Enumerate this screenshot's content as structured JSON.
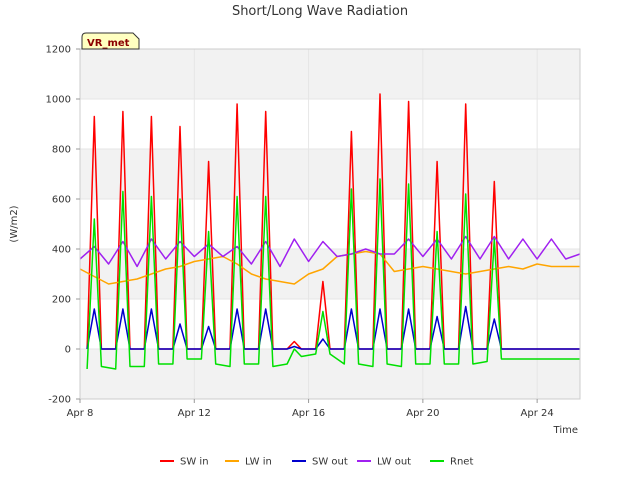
{
  "chart_data": {
    "type": "line",
    "title": "Short/Long Wave Radiation",
    "xlabel": "Time",
    "ylabel": "(W/m2)",
    "badge": "VR_met",
    "ylim": [
      -200,
      1200
    ],
    "yticks": [
      -200,
      0,
      200,
      400,
      600,
      800,
      1000,
      1200
    ],
    "xlim": [
      "2024-04-08",
      "2024-04-25 12:00"
    ],
    "xticks": [
      {
        "label": "Apr 8",
        "date": "2024-04-08"
      },
      {
        "label": "Apr 12",
        "date": "2024-04-12"
      },
      {
        "label": "Apr 16",
        "date": "2024-04-16"
      },
      {
        "label": "Apr 20",
        "date": "2024-04-20"
      },
      {
        "label": "Apr 24",
        "date": "2024-04-24"
      }
    ],
    "band_colors": [
      "#f2f2f2",
      "#ffffff"
    ],
    "legend_position": "bottom",
    "series": [
      {
        "name": "SW in",
        "color": "#ff0000",
        "x": [
          "2024-04-08 06:00",
          "2024-04-08 12:00",
          "2024-04-08 18:00",
          "2024-04-09 06:00",
          "2024-04-09 12:00",
          "2024-04-09 18:00",
          "2024-04-10 06:00",
          "2024-04-10 12:00",
          "2024-04-10 18:00",
          "2024-04-11 06:00",
          "2024-04-11 12:00",
          "2024-04-11 18:00",
          "2024-04-12 06:00",
          "2024-04-12 12:00",
          "2024-04-12 18:00",
          "2024-04-13 06:00",
          "2024-04-13 12:00",
          "2024-04-13 18:00",
          "2024-04-14 06:00",
          "2024-04-14 12:00",
          "2024-04-14 18:00",
          "2024-04-15 06:00",
          "2024-04-15 12:00",
          "2024-04-15 18:00",
          "2024-04-16 06:00",
          "2024-04-16 12:00",
          "2024-04-16 18:00",
          "2024-04-17 06:00",
          "2024-04-17 12:00",
          "2024-04-17 18:00",
          "2024-04-18 06:00",
          "2024-04-18 12:00",
          "2024-04-18 18:00",
          "2024-04-19 06:00",
          "2024-04-19 12:00",
          "2024-04-19 18:00",
          "2024-04-20 06:00",
          "2024-04-20 12:00",
          "2024-04-20 18:00",
          "2024-04-21 06:00",
          "2024-04-21 12:00",
          "2024-04-21 18:00",
          "2024-04-22 06:00",
          "2024-04-22 12:00",
          "2024-04-22 18:00",
          "2024-04-23 06:00",
          "2024-04-23 12:00",
          "2024-04-23 18:00",
          "2024-04-24 06:00",
          "2024-04-24 12:00",
          "2024-04-24 18:00",
          "2024-04-25 06:00",
          "2024-04-25 12:00"
        ],
        "values": [
          0,
          930,
          0,
          0,
          950,
          0,
          0,
          930,
          0,
          0,
          890,
          0,
          0,
          750,
          0,
          0,
          980,
          0,
          0,
          950,
          0,
          0,
          30,
          0,
          0,
          270,
          0,
          0,
          870,
          0,
          0,
          1020,
          0,
          0,
          990,
          0,
          0,
          750,
          0,
          0,
          980,
          0,
          0,
          670,
          0,
          0,
          0,
          0,
          0,
          0,
          0,
          0,
          0
        ]
      },
      {
        "name": "LW in",
        "color": "#ffa500",
        "x": [
          "2024-04-08",
          "2024-04-08 12:00",
          "2024-04-09",
          "2024-04-09 12:00",
          "2024-04-10",
          "2024-04-10 12:00",
          "2024-04-11",
          "2024-04-11 12:00",
          "2024-04-12",
          "2024-04-12 12:00",
          "2024-04-13",
          "2024-04-13 12:00",
          "2024-04-14",
          "2024-04-14 12:00",
          "2024-04-15",
          "2024-04-15 12:00",
          "2024-04-16",
          "2024-04-16 12:00",
          "2024-04-17",
          "2024-04-17 12:00",
          "2024-04-18",
          "2024-04-18 12:00",
          "2024-04-19",
          "2024-04-19 12:00",
          "2024-04-20",
          "2024-04-20 12:00",
          "2024-04-21",
          "2024-04-21 12:00",
          "2024-04-22",
          "2024-04-22 12:00",
          "2024-04-23",
          "2024-04-23 12:00",
          "2024-04-24",
          "2024-04-24 12:00",
          "2024-04-25",
          "2024-04-25 12:00"
        ],
        "values": [
          320,
          290,
          260,
          270,
          280,
          300,
          320,
          330,
          350,
          360,
          370,
          340,
          300,
          280,
          270,
          260,
          300,
          320,
          370,
          380,
          390,
          380,
          310,
          320,
          330,
          320,
          310,
          300,
          310,
          320,
          330,
          320,
          340,
          330,
          330,
          330
        ]
      },
      {
        "name": "SW out",
        "color": "#0000cd",
        "x": [
          "2024-04-08 06:00",
          "2024-04-08 12:00",
          "2024-04-08 18:00",
          "2024-04-09 06:00",
          "2024-04-09 12:00",
          "2024-04-09 18:00",
          "2024-04-10 06:00",
          "2024-04-10 12:00",
          "2024-04-10 18:00",
          "2024-04-11 06:00",
          "2024-04-11 12:00",
          "2024-04-11 18:00",
          "2024-04-12 06:00",
          "2024-04-12 12:00",
          "2024-04-12 18:00",
          "2024-04-13 06:00",
          "2024-04-13 12:00",
          "2024-04-13 18:00",
          "2024-04-14 06:00",
          "2024-04-14 12:00",
          "2024-04-14 18:00",
          "2024-04-15 06:00",
          "2024-04-15 12:00",
          "2024-04-15 18:00",
          "2024-04-16 06:00",
          "2024-04-16 12:00",
          "2024-04-16 18:00",
          "2024-04-17 06:00",
          "2024-04-17 12:00",
          "2024-04-17 18:00",
          "2024-04-18 06:00",
          "2024-04-18 12:00",
          "2024-04-18 18:00",
          "2024-04-19 06:00",
          "2024-04-19 12:00",
          "2024-04-19 18:00",
          "2024-04-20 06:00",
          "2024-04-20 12:00",
          "2024-04-20 18:00",
          "2024-04-21 06:00",
          "2024-04-21 12:00",
          "2024-04-21 18:00",
          "2024-04-22 06:00",
          "2024-04-22 12:00",
          "2024-04-22 18:00",
          "2024-04-23 06:00",
          "2024-04-23 12:00",
          "2024-04-23 18:00",
          "2024-04-24 06:00",
          "2024-04-24 12:00",
          "2024-04-24 18:00",
          "2024-04-25 06:00",
          "2024-04-25 12:00"
        ],
        "values": [
          0,
          160,
          0,
          0,
          160,
          0,
          0,
          160,
          0,
          0,
          100,
          0,
          0,
          90,
          0,
          0,
          160,
          0,
          0,
          160,
          0,
          0,
          10,
          0,
          0,
          40,
          0,
          0,
          160,
          0,
          0,
          160,
          0,
          0,
          160,
          0,
          0,
          130,
          0,
          0,
          170,
          0,
          0,
          120,
          0,
          0,
          0,
          0,
          0,
          0,
          0,
          0,
          0
        ]
      },
      {
        "name": "LW out",
        "color": "#a020f0",
        "x": [
          "2024-04-08",
          "2024-04-08 12:00",
          "2024-04-09",
          "2024-04-09 12:00",
          "2024-04-10",
          "2024-04-10 12:00",
          "2024-04-11",
          "2024-04-11 12:00",
          "2024-04-12",
          "2024-04-12 12:00",
          "2024-04-13",
          "2024-04-13 12:00",
          "2024-04-14",
          "2024-04-14 12:00",
          "2024-04-15",
          "2024-04-15 12:00",
          "2024-04-16",
          "2024-04-16 12:00",
          "2024-04-17",
          "2024-04-17 12:00",
          "2024-04-18",
          "2024-04-18 12:00",
          "2024-04-19",
          "2024-04-19 12:00",
          "2024-04-20",
          "2024-04-20 12:00",
          "2024-04-21",
          "2024-04-21 12:00",
          "2024-04-22",
          "2024-04-22 12:00",
          "2024-04-23",
          "2024-04-23 12:00",
          "2024-04-24",
          "2024-04-24 12:00",
          "2024-04-25",
          "2024-04-25 12:00"
        ],
        "values": [
          360,
          410,
          340,
          430,
          330,
          440,
          360,
          430,
          370,
          420,
          370,
          410,
          340,
          430,
          330,
          440,
          350,
          430,
          370,
          380,
          400,
          380,
          380,
          440,
          370,
          440,
          360,
          450,
          360,
          450,
          360,
          440,
          360,
          440,
          360,
          380
        ]
      },
      {
        "name": "Rnet",
        "color": "#00e000",
        "x": [
          "2024-04-08 06:00",
          "2024-04-08 12:00",
          "2024-04-08 18:00",
          "2024-04-09 06:00",
          "2024-04-09 12:00",
          "2024-04-09 18:00",
          "2024-04-10 06:00",
          "2024-04-10 12:00",
          "2024-04-10 18:00",
          "2024-04-11 06:00",
          "2024-04-11 12:00",
          "2024-04-11 18:00",
          "2024-04-12 06:00",
          "2024-04-12 12:00",
          "2024-04-12 18:00",
          "2024-04-13 06:00",
          "2024-04-13 12:00",
          "2024-04-13 18:00",
          "2024-04-14 06:00",
          "2024-04-14 12:00",
          "2024-04-14 18:00",
          "2024-04-15 06:00",
          "2024-04-15 12:00",
          "2024-04-15 18:00",
          "2024-04-16 06:00",
          "2024-04-16 12:00",
          "2024-04-16 18:00",
          "2024-04-17 06:00",
          "2024-04-17 12:00",
          "2024-04-17 18:00",
          "2024-04-18 06:00",
          "2024-04-18 12:00",
          "2024-04-18 18:00",
          "2024-04-19 06:00",
          "2024-04-19 12:00",
          "2024-04-19 18:00",
          "2024-04-20 06:00",
          "2024-04-20 12:00",
          "2024-04-20 18:00",
          "2024-04-21 06:00",
          "2024-04-21 12:00",
          "2024-04-21 18:00",
          "2024-04-22 06:00",
          "2024-04-22 12:00",
          "2024-04-22 18:00",
          "2024-04-23 06:00",
          "2024-04-23 12:00",
          "2024-04-23 18:00",
          "2024-04-24 06:00",
          "2024-04-24 12:00",
          "2024-04-24 18:00",
          "2024-04-25 06:00",
          "2024-04-25 12:00"
        ],
        "values": [
          -80,
          520,
          -70,
          -80,
          630,
          -70,
          -70,
          610,
          -60,
          -60,
          600,
          -40,
          -40,
          470,
          -60,
          -70,
          610,
          -60,
          -60,
          610,
          -70,
          -60,
          0,
          -30,
          -20,
          150,
          -20,
          -60,
          640,
          -60,
          -70,
          680,
          -60,
          -70,
          660,
          -60,
          -60,
          470,
          -60,
          -60,
          620,
          -60,
          -50,
          440,
          -40,
          -40,
          -40,
          -40,
          -40,
          -40,
          -40,
          -40,
          -40
        ]
      }
    ]
  }
}
